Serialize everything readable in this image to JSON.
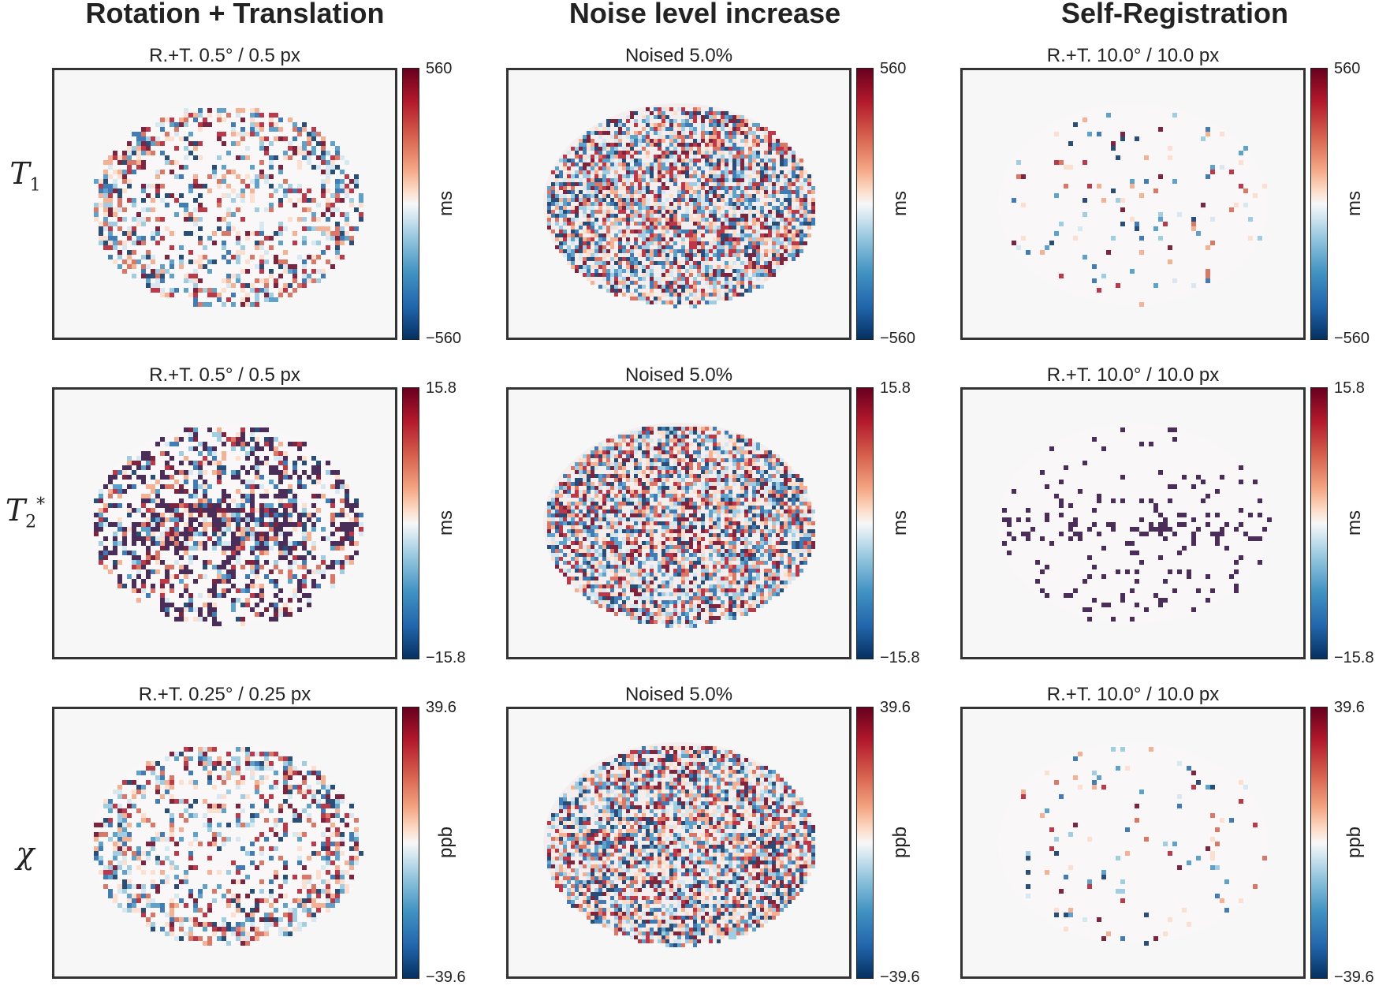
{
  "columns": [
    {
      "title": "Rotation + Translation"
    },
    {
      "title": "Noise level increase"
    },
    {
      "title": "Self-Registration"
    }
  ],
  "rows": [
    {
      "label_base": "T",
      "label_sub": "1",
      "label_sup": "",
      "unit": "ms",
      "max": "560",
      "min": "−560",
      "panel_titles": [
        "R.+T. 0.5° / 0.5 px",
        "Noised 5.0%",
        "R.+T. 10.0° / 10.0 px"
      ]
    },
    {
      "label_base": "T",
      "label_sub": "2",
      "label_sup": "*",
      "unit": "ms",
      "max": "15.8",
      "min": "−15.8",
      "panel_titles": [
        "R.+T. 0.5° / 0.5 px",
        "Noised 5.0%",
        "R.+T. 10.0° / 10.0 px"
      ]
    },
    {
      "label_base": "χ",
      "label_sub": "",
      "label_sup": "",
      "unit": "ppb",
      "max": "39.6",
      "min": "−39.6",
      "panel_titles": [
        "R.+T. 0.25° / 0.25 px",
        "Noised 5.0%",
        "R.+T. 10.0° / 10.0 px"
      ]
    }
  ],
  "colormap": {
    "high": "#67001f",
    "mid": "#f7f7f7",
    "low": "#053061"
  }
}
